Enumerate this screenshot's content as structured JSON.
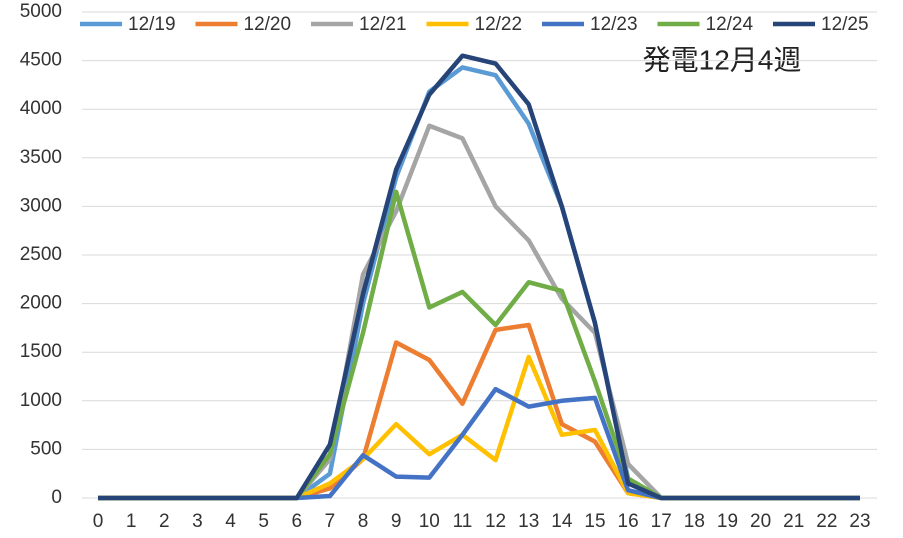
{
  "chart_data": {
    "type": "line",
    "title": "発電12月4週",
    "x": [
      0,
      1,
      2,
      3,
      4,
      5,
      6,
      7,
      8,
      9,
      10,
      11,
      12,
      13,
      14,
      15,
      16,
      17,
      18,
      19,
      20,
      21,
      22,
      23
    ],
    "xlim": [
      0,
      23
    ],
    "xticks": [
      0,
      1,
      2,
      3,
      4,
      5,
      6,
      7,
      8,
      9,
      10,
      11,
      12,
      13,
      14,
      15,
      16,
      17,
      18,
      19,
      20,
      21,
      22,
      23
    ],
    "ylim": [
      0,
      5000
    ],
    "yticks": [
      0,
      500,
      1000,
      1500,
      2000,
      2500,
      3000,
      3500,
      4000,
      4500,
      5000
    ],
    "grid": true,
    "legend": "top",
    "series": [
      {
        "name": "12/19",
        "color": "#5b9bd5",
        "values": [
          0,
          0,
          0,
          0,
          0,
          0,
          0,
          250,
          2000,
          3300,
          4180,
          4430,
          4350,
          3850,
          3000,
          1800,
          200,
          0,
          0,
          0,
          0,
          0,
          0,
          0
        ]
      },
      {
        "name": "12/20",
        "color": "#ed7d31",
        "values": [
          0,
          0,
          0,
          0,
          0,
          0,
          0,
          100,
          400,
          1600,
          1420,
          970,
          1730,
          1780,
          760,
          580,
          50,
          0,
          0,
          0,
          0,
          0,
          0,
          0
        ]
      },
      {
        "name": "12/21",
        "color": "#a5a5a5",
        "values": [
          0,
          0,
          0,
          0,
          0,
          0,
          0,
          400,
          2300,
          2950,
          3830,
          3700,
          3000,
          2650,
          2050,
          1700,
          350,
          0,
          0,
          0,
          0,
          0,
          0,
          0
        ]
      },
      {
        "name": "12/22",
        "color": "#ffc000",
        "values": [
          0,
          0,
          0,
          0,
          0,
          0,
          0,
          150,
          400,
          760,
          450,
          650,
          390,
          1450,
          650,
          700,
          50,
          0,
          0,
          0,
          0,
          0,
          0,
          0
        ]
      },
      {
        "name": "12/23",
        "color": "#4472c4",
        "values": [
          0,
          0,
          0,
          0,
          0,
          0,
          0,
          20,
          440,
          220,
          210,
          650,
          1120,
          940,
          1000,
          1030,
          80,
          0,
          0,
          0,
          0,
          0,
          0,
          0
        ]
      },
      {
        "name": "12/24",
        "color": "#70ad47",
        "values": [
          0,
          0,
          0,
          0,
          0,
          0,
          0,
          450,
          1700,
          3150,
          1960,
          2120,
          1780,
          2220,
          2130,
          1200,
          200,
          0,
          0,
          0,
          0,
          0,
          0,
          0
        ]
      },
      {
        "name": "12/25",
        "color": "#264478",
        "values": [
          0,
          0,
          0,
          0,
          0,
          0,
          0,
          550,
          2100,
          3380,
          4150,
          4550,
          4470,
          4050,
          3000,
          1800,
          150,
          0,
          0,
          0,
          0,
          0,
          0,
          0
        ]
      }
    ]
  }
}
